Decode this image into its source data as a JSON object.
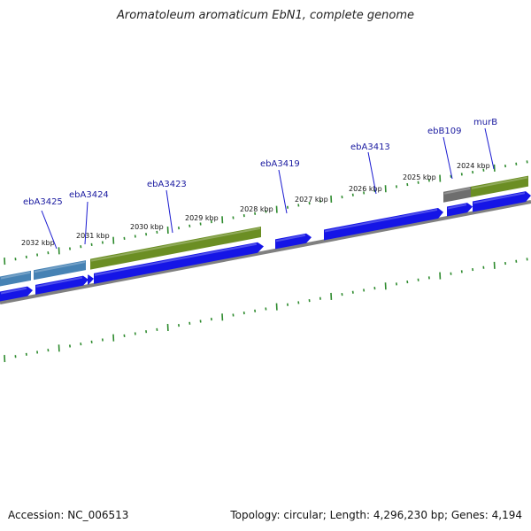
{
  "title": "Aromatoleum aromaticum EbN1, complete genome",
  "footer": {
    "accession": "Accession: NC_006513",
    "stats": "Topology: circular; Length: 4,296,230 bp; Genes: 4,194"
  },
  "colors": {
    "backbone": "#808080",
    "tick": "#2e8b2e",
    "cds_blue": "#1515e6",
    "gene_green": "#6b8e23",
    "gene_steel": "#4682b4",
    "gene_gray": "#6e6e6e",
    "label_blue": "#1a1aa0"
  },
  "scale_labels": [
    "2032 kbp",
    "2031 kbp",
    "2030 kbp",
    "2029 kbp",
    "2028 kbp",
    "2027 kbp",
    "2026 kbp",
    "2025 kbp",
    "2024 kbp"
  ],
  "gene_labels": [
    "ebA3425",
    "ebA3424",
    "ebA3423",
    "ebA3419",
    "ebA3413",
    "ebB109",
    "murB"
  ]
}
